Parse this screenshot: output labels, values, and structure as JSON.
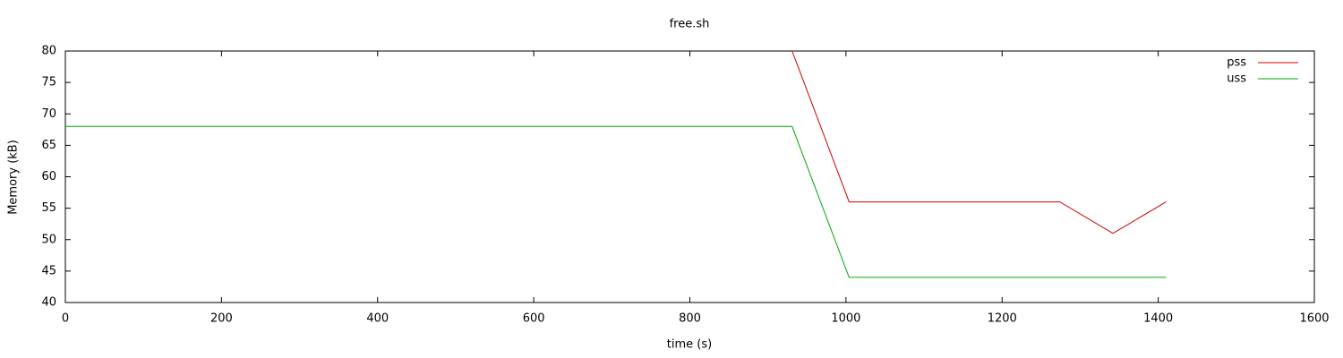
{
  "chart_data": {
    "type": "line",
    "title": "free.sh",
    "x_label": "time (s)",
    "y_label": "Memory (kB)",
    "x": [
      0,
      931,
      1004,
      1274,
      1342,
      1410
    ],
    "series": [
      {
        "name": "pss",
        "color": "#cc0000",
        "values": [
          null,
          80,
          56,
          56,
          51,
          56
        ]
      },
      {
        "name": "uss",
        "color": "#00aa00",
        "values": [
          68,
          68,
          44,
          44,
          44,
          44
        ]
      }
    ],
    "xlim": [
      0,
      1600
    ],
    "xticks": [
      0,
      200,
      400,
      600,
      800,
      1000,
      1200,
      1400,
      1600
    ],
    "ylim": [
      40,
      80
    ],
    "yticks": [
      40,
      45,
      50,
      55,
      60,
      65,
      70,
      75,
      80
    ],
    "grid": false,
    "legend": "top-right"
  }
}
